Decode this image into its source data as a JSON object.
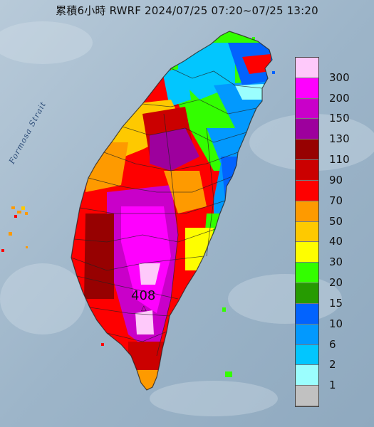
{
  "title": "累積6小時 RWRF 2024/07/25 07:20~07/25 13:20",
  "strait_label": "Formosa Strait",
  "peak_value": "408",
  "legend": {
    "items": [
      {
        "label": "300",
        "color": "#fec9fa"
      },
      {
        "label": "200",
        "color": "#fe01fe"
      },
      {
        "label": "150",
        "color": "#c900c9"
      },
      {
        "label": "130",
        "color": "#9d009d"
      },
      {
        "label": "110",
        "color": "#970101"
      },
      {
        "label": "90",
        "color": "#cb0000"
      },
      {
        "label": "70",
        "color": "#fe0000"
      },
      {
        "label": "50",
        "color": "#fe9a00"
      },
      {
        "label": "40",
        "color": "#fec900"
      },
      {
        "label": "30",
        "color": "#fefe00"
      },
      {
        "label": "20",
        "color": "#33fe00"
      },
      {
        "label": "15",
        "color": "#269b01"
      },
      {
        "label": "10",
        "color": "#0263fe"
      },
      {
        "label": "6",
        "color": "#0299fe"
      },
      {
        "label": "2",
        "color": "#02c6fe"
      },
      {
        "label": "1",
        "color": "#9bfefe"
      },
      {
        "label": "",
        "color": "#c1c1c1"
      }
    ]
  }
}
